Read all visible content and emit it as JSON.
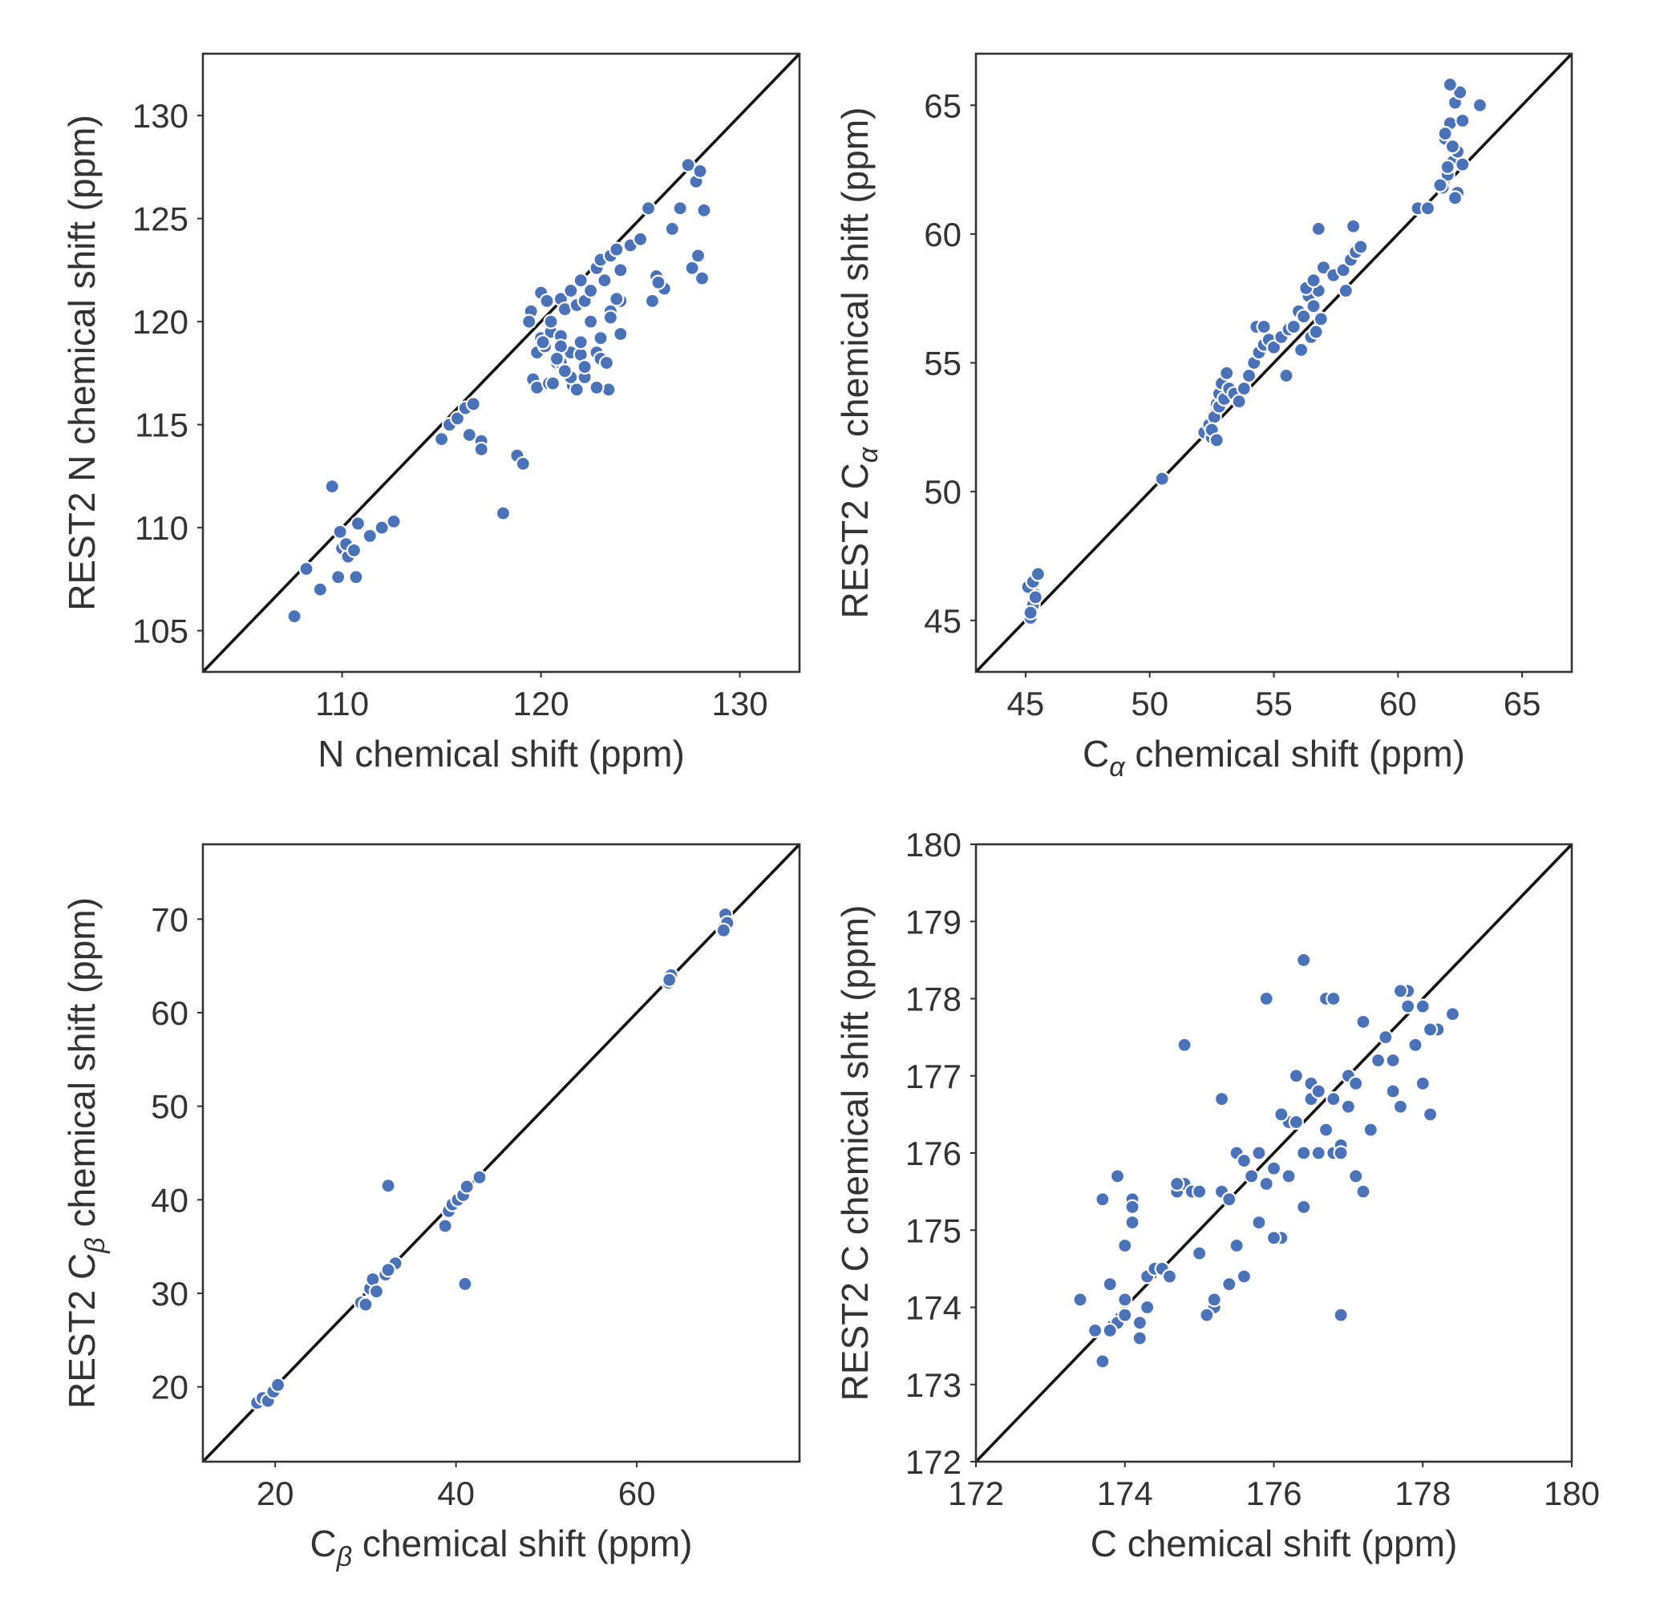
{
  "style": {
    "point_color": "#4a72b8",
    "line_color": "#111111",
    "frame_color": "#333333"
  },
  "chart_data": [
    {
      "type": "scatter",
      "name": "n-shift-panel",
      "xlabel": {
        "main": "N chemical shift (ppm)"
      },
      "ylabel": {
        "main": "REST2 N chemical shift (ppm)"
      },
      "xlim": [
        103,
        133
      ],
      "ylim": [
        103,
        133
      ],
      "xticks": [
        110,
        120,
        130
      ],
      "yticks": [
        105,
        110,
        115,
        120,
        125,
        130
      ],
      "diagonal": true,
      "x": [
        107.6,
        108.2,
        108.9,
        109.5,
        109.8,
        110.0,
        110.4,
        110.8,
        110.3,
        110.7,
        109.9,
        110.2,
        110.6,
        111.4,
        112.0,
        112.6,
        115.0,
        115.4,
        115.8,
        116.2,
        116.6,
        117.0,
        116.4,
        117.0,
        118.1,
        118.8,
        119.1,
        119.6,
        119.8,
        120.0,
        120.2,
        120.5,
        120.8,
        121.0,
        121.2,
        121.5,
        121.8,
        122.0,
        122.2,
        122.5,
        122.8,
        123.0,
        123.2,
        123.5,
        123.8,
        124.0,
        120.0,
        120.5,
        121.0,
        121.5,
        122.0,
        122.5,
        123.0,
        123.5,
        124.0,
        119.8,
        120.4,
        121.0,
        121.6,
        122.2,
        122.8,
        123.4,
        124.0,
        124.5,
        125.0,
        125.4,
        125.8,
        126.2,
        126.6,
        127.0,
        127.4,
        127.8,
        128.0,
        128.2,
        127.6,
        127.9,
        128.1,
        125.6,
        125.9,
        120.6,
        121.0,
        121.8,
        122.2,
        123.0,
        119.5,
        120.3,
        120.8,
        121.5,
        122.0,
        122.8,
        123.3,
        123.8,
        119.4,
        120.1,
        121.2,
        123.5
      ],
      "y": [
        105.7,
        108.0,
        107.0,
        112.0,
        107.6,
        109.0,
        108.8,
        110.2,
        108.6,
        107.6,
        109.8,
        109.2,
        108.9,
        109.6,
        110.0,
        110.3,
        114.3,
        115.0,
        115.3,
        115.8,
        116.0,
        114.2,
        114.5,
        113.8,
        110.7,
        113.5,
        113.1,
        117.2,
        118.5,
        119.2,
        118.8,
        119.5,
        118.0,
        121.1,
        120.6,
        121.5,
        120.8,
        122.0,
        121.0,
        121.5,
        122.6,
        123.0,
        122.0,
        123.2,
        123.5,
        122.5,
        121.4,
        120.0,
        119.3,
        118.5,
        118.4,
        120.0,
        119.2,
        120.5,
        121.0,
        116.8,
        117.0,
        118.0,
        116.9,
        117.3,
        118.5,
        116.7,
        119.4,
        123.7,
        124.0,
        125.5,
        122.2,
        121.6,
        124.5,
        125.5,
        127.6,
        126.8,
        127.3,
        125.4,
        122.6,
        123.2,
        122.1,
        121.0,
        121.9,
        117.0,
        118.8,
        116.7,
        117.8,
        118.2,
        120.5,
        121.0,
        118.2,
        117.3,
        119.0,
        116.8,
        118.0,
        121.1,
        120.0,
        119.0,
        117.6,
        120.2
      ]
    },
    {
      "type": "scatter",
      "name": "ca-shift-panel",
      "xlabel": {
        "main": "C",
        "sub": "α",
        "rest": " chemical shift (ppm)"
      },
      "ylabel": {
        "prefix": "REST2 C",
        "sub": "α",
        "rest": " chemical shift (ppm)"
      },
      "xlim": [
        43,
        67
      ],
      "ylim": [
        43,
        67
      ],
      "xticks": [
        45,
        50,
        55,
        60,
        65
      ],
      "yticks": [
        45,
        50,
        55,
        60,
        65
      ],
      "diagonal": true,
      "x": [
        45.2,
        45.3,
        45.4,
        45.1,
        45.3,
        45.5,
        45.2,
        45.4,
        50.5,
        52.2,
        52.4,
        52.5,
        52.6,
        52.7,
        52.8,
        52.9,
        52.6,
        52.8,
        52.5,
        53.0,
        53.2,
        53.4,
        53.6,
        53.8,
        54.0,
        54.2,
        54.4,
        54.6,
        54.8,
        55.0,
        55.3,
        55.6,
        55.8,
        56.0,
        56.2,
        56.4,
        56.6,
        56.8,
        56.5,
        56.7,
        56.9,
        56.3,
        56.6,
        57.0,
        57.4,
        57.8,
        58.1,
        58.3,
        58.5,
        58.2,
        57.9,
        56.1,
        55.5,
        54.3,
        54.6,
        60.8,
        61.2,
        61.8,
        62.0,
        62.2,
        62.4,
        61.9,
        62.1,
        62.3,
        62.5,
        62.6,
        61.7,
        62.0,
        62.2,
        62.4,
        63.3,
        62.3,
        61.9,
        62.6,
        62.1,
        52.7,
        53.1,
        56.8
      ],
      "y": [
        45.1,
        45.6,
        46.0,
        46.3,
        46.5,
        46.8,
        45.3,
        45.9,
        50.5,
        52.3,
        52.6,
        52.1,
        53.0,
        53.4,
        53.8,
        54.2,
        52.9,
        53.3,
        52.4,
        53.6,
        54.0,
        53.8,
        53.5,
        54.0,
        54.5,
        55.0,
        55.4,
        55.7,
        55.9,
        55.6,
        56.0,
        56.3,
        56.4,
        57.0,
        56.8,
        57.6,
        57.2,
        57.8,
        56.0,
        56.2,
        56.7,
        57.9,
        58.2,
        58.7,
        58.4,
        58.6,
        59.0,
        59.3,
        59.5,
        60.3,
        57.8,
        55.5,
        54.5,
        56.4,
        56.4,
        61.0,
        61.0,
        61.8,
        62.3,
        62.8,
        63.2,
        63.7,
        64.3,
        65.1,
        65.5,
        64.4,
        61.9,
        62.6,
        63.4,
        61.6,
        65.0,
        61.4,
        63.9,
        62.7,
        65.8,
        52.0,
        54.6,
        60.2
      ]
    },
    {
      "type": "scatter",
      "name": "cb-shift-panel",
      "xlabel": {
        "main": "C",
        "sub": "β",
        "rest": " chemical shift (ppm)"
      },
      "ylabel": {
        "prefix": "REST2 C",
        "sub": "β",
        "rest": " chemical shift (ppm)"
      },
      "xlim": [
        12,
        78
      ],
      "ylim": [
        12,
        78
      ],
      "xticks": [
        20,
        40,
        60
      ],
      "yticks": [
        20,
        30,
        40,
        50,
        60,
        70
      ],
      "diagonal": true,
      "x": [
        18.0,
        18.6,
        19.2,
        19.8,
        20.3,
        29.5,
        30.0,
        30.5,
        30.8,
        31.2,
        32.2,
        32.8,
        33.3,
        32.5,
        38.8,
        39.2,
        39.6,
        40.2,
        40.8,
        41.2,
        42.6,
        32.5,
        41.0,
        63.5,
        63.8,
        69.5,
        69.8,
        70.0,
        69.6,
        63.6
      ],
      "y": [
        18.3,
        18.8,
        18.5,
        19.5,
        20.2,
        29.0,
        28.8,
        30.5,
        31.5,
        30.2,
        32.0,
        32.8,
        33.2,
        32.5,
        37.2,
        38.8,
        39.5,
        40.0,
        40.5,
        41.4,
        42.4,
        41.5,
        31.0,
        63.2,
        64.0,
        69.0,
        70.5,
        69.6,
        68.8,
        63.5
      ]
    },
    {
      "type": "scatter",
      "name": "c-shift-panel",
      "xlabel": {
        "main": "C chemical shift (ppm)"
      },
      "ylabel": {
        "main": "REST2 C chemical shift (ppm)"
      },
      "xlim": [
        172,
        180
      ],
      "ylim": [
        172,
        180
      ],
      "xticks": [
        172,
        174,
        176,
        178,
        180
      ],
      "yticks": [
        172,
        173,
        174,
        175,
        176,
        177,
        178,
        179,
        180
      ],
      "diagonal": true,
      "x": [
        173.4,
        173.6,
        173.7,
        173.8,
        173.9,
        174.0,
        174.1,
        174.2,
        174.3,
        174.4,
        173.7,
        173.9,
        174.1,
        174.0,
        174.2,
        174.5,
        174.6,
        174.7,
        174.8,
        174.9,
        175.0,
        175.2,
        175.3,
        175.4,
        175.5,
        175.6,
        175.7,
        175.8,
        175.9,
        176.0,
        176.1,
        176.2,
        176.3,
        176.4,
        176.5,
        176.6,
        176.7,
        176.8,
        176.9,
        177.0,
        177.1,
        177.2,
        177.3,
        177.5,
        177.6,
        177.7,
        177.8,
        177.9,
        178.0,
        178.1,
        178.2,
        178.4,
        174.8,
        175.3,
        175.9,
        176.4,
        176.7,
        177.0,
        176.9,
        177.8,
        178.0,
        174.0,
        174.3,
        175.1,
        175.6,
        176.2,
        176.5,
        176.8,
        177.1,
        175.2,
        175.8,
        176.1,
        176.6,
        177.2,
        174.7,
        175.0,
        175.5,
        176.0,
        176.3,
        176.9,
        177.6,
        177.9,
        178.1,
        174.1,
        173.8,
        174.6,
        175.4,
        176.0,
        176.4,
        176.8,
        177.4,
        177.7
      ],
      "y": [
        174.1,
        173.7,
        173.3,
        174.3,
        173.8,
        174.1,
        175.4,
        173.6,
        174.4,
        174.5,
        175.4,
        175.7,
        175.3,
        174.8,
        173.8,
        174.5,
        174.4,
        175.5,
        175.6,
        175.5,
        174.7,
        174.0,
        175.5,
        175.4,
        176.0,
        175.9,
        175.7,
        176.0,
        175.6,
        175.8,
        174.9,
        176.4,
        177.0,
        175.3,
        176.7,
        176.0,
        176.3,
        176.0,
        176.1,
        176.6,
        175.7,
        175.5,
        176.3,
        177.5,
        176.8,
        176.6,
        178.1,
        177.4,
        176.9,
        176.5,
        177.6,
        177.8,
        177.4,
        176.7,
        178.0,
        178.5,
        178.0,
        177.0,
        173.9,
        177.9,
        177.9,
        173.9,
        174.0,
        173.9,
        174.4,
        175.7,
        176.9,
        178.0,
        176.9,
        174.1,
        175.1,
        176.5,
        176.8,
        177.7,
        175.6,
        175.5,
        174.8,
        175.8,
        176.4,
        176.0,
        177.2,
        177.4,
        177.6,
        175.1,
        173.7,
        174.4,
        174.3,
        174.9,
        176.0,
        176.7,
        177.2,
        178.1
      ]
    }
  ]
}
